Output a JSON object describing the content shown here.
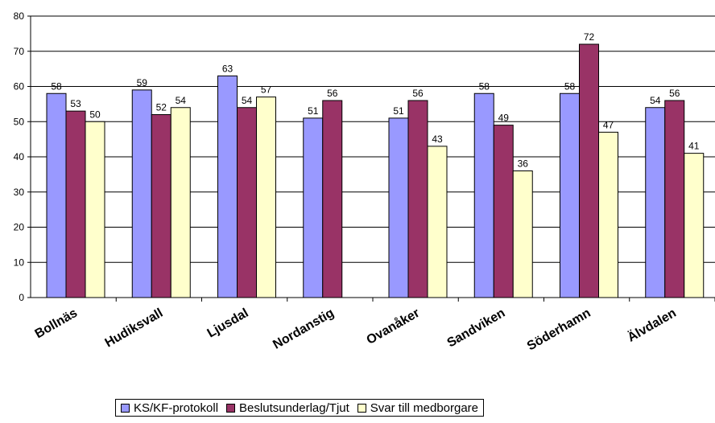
{
  "chart_data": {
    "type": "bar",
    "categories": [
      "Bollnäs",
      "Hudiksvall",
      "Ljusdal",
      "Nordanstig",
      "Ovanåker",
      "Sandviken",
      "Söderhamn",
      "Älvdalen"
    ],
    "series": [
      {
        "name": "KS/KF-protokoll",
        "color": "#9999ff",
        "values": [
          58,
          59,
          63,
          51,
          51,
          58,
          58,
          54
        ]
      },
      {
        "name": "Beslutsunderlag/Tjut",
        "color": "#993366",
        "values": [
          53,
          52,
          54,
          56,
          56,
          49,
          72,
          56
        ]
      },
      {
        "name": "Svar till medborgare",
        "color": "#ffffcc",
        "values": [
          50,
          54,
          57,
          null,
          43,
          36,
          47,
          41
        ]
      }
    ],
    "ylim": [
      0,
      80
    ],
    "yticks": [
      0,
      10,
      20,
      30,
      40,
      50,
      60,
      70,
      80
    ],
    "grid": true,
    "legend_position": "bottom",
    "data_labels": true
  }
}
